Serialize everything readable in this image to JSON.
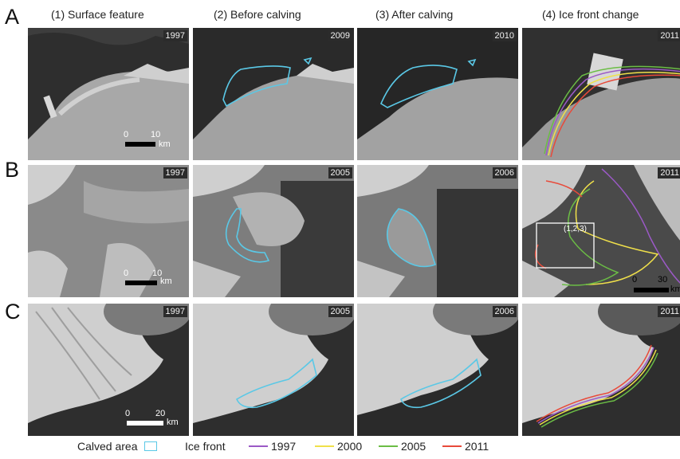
{
  "columns": [
    {
      "label": "(1) Surface feature"
    },
    {
      "label": "(2) Before calving"
    },
    {
      "label": "(3) After calving"
    },
    {
      "label": "(4) Ice front change"
    }
  ],
  "rows": [
    {
      "letter": "A",
      "years": [
        "1997",
        "2009",
        "2010",
        "2011"
      ],
      "scale": {
        "zero": "0",
        "max": "10",
        "unit": "km"
      }
    },
    {
      "letter": "B",
      "years": [
        "1997",
        "2005",
        "2006",
        "2011"
      ],
      "scale": {
        "zero": "0",
        "max": "10",
        "unit": "km"
      },
      "scale4": {
        "zero": "0",
        "max": "30",
        "unit": "km"
      },
      "inset_label": "(1,2,3)"
    },
    {
      "letter": "C",
      "years": [
        "1997",
        "2005",
        "2006",
        "2011"
      ],
      "scale": {
        "zero": "0",
        "max": "20",
        "unit": "km"
      }
    }
  ],
  "legend": {
    "calved": "Calved area",
    "ice_front": "Ice front",
    "years": [
      {
        "label": "1997",
        "color": "#9b59c6"
      },
      {
        "label": "2000",
        "color": "#f0e04a"
      },
      {
        "label": "2005",
        "color": "#6bbd45"
      },
      {
        "label": "2011",
        "color": "#e84a3a"
      }
    ],
    "calved_color": "#5ac8e6"
  }
}
